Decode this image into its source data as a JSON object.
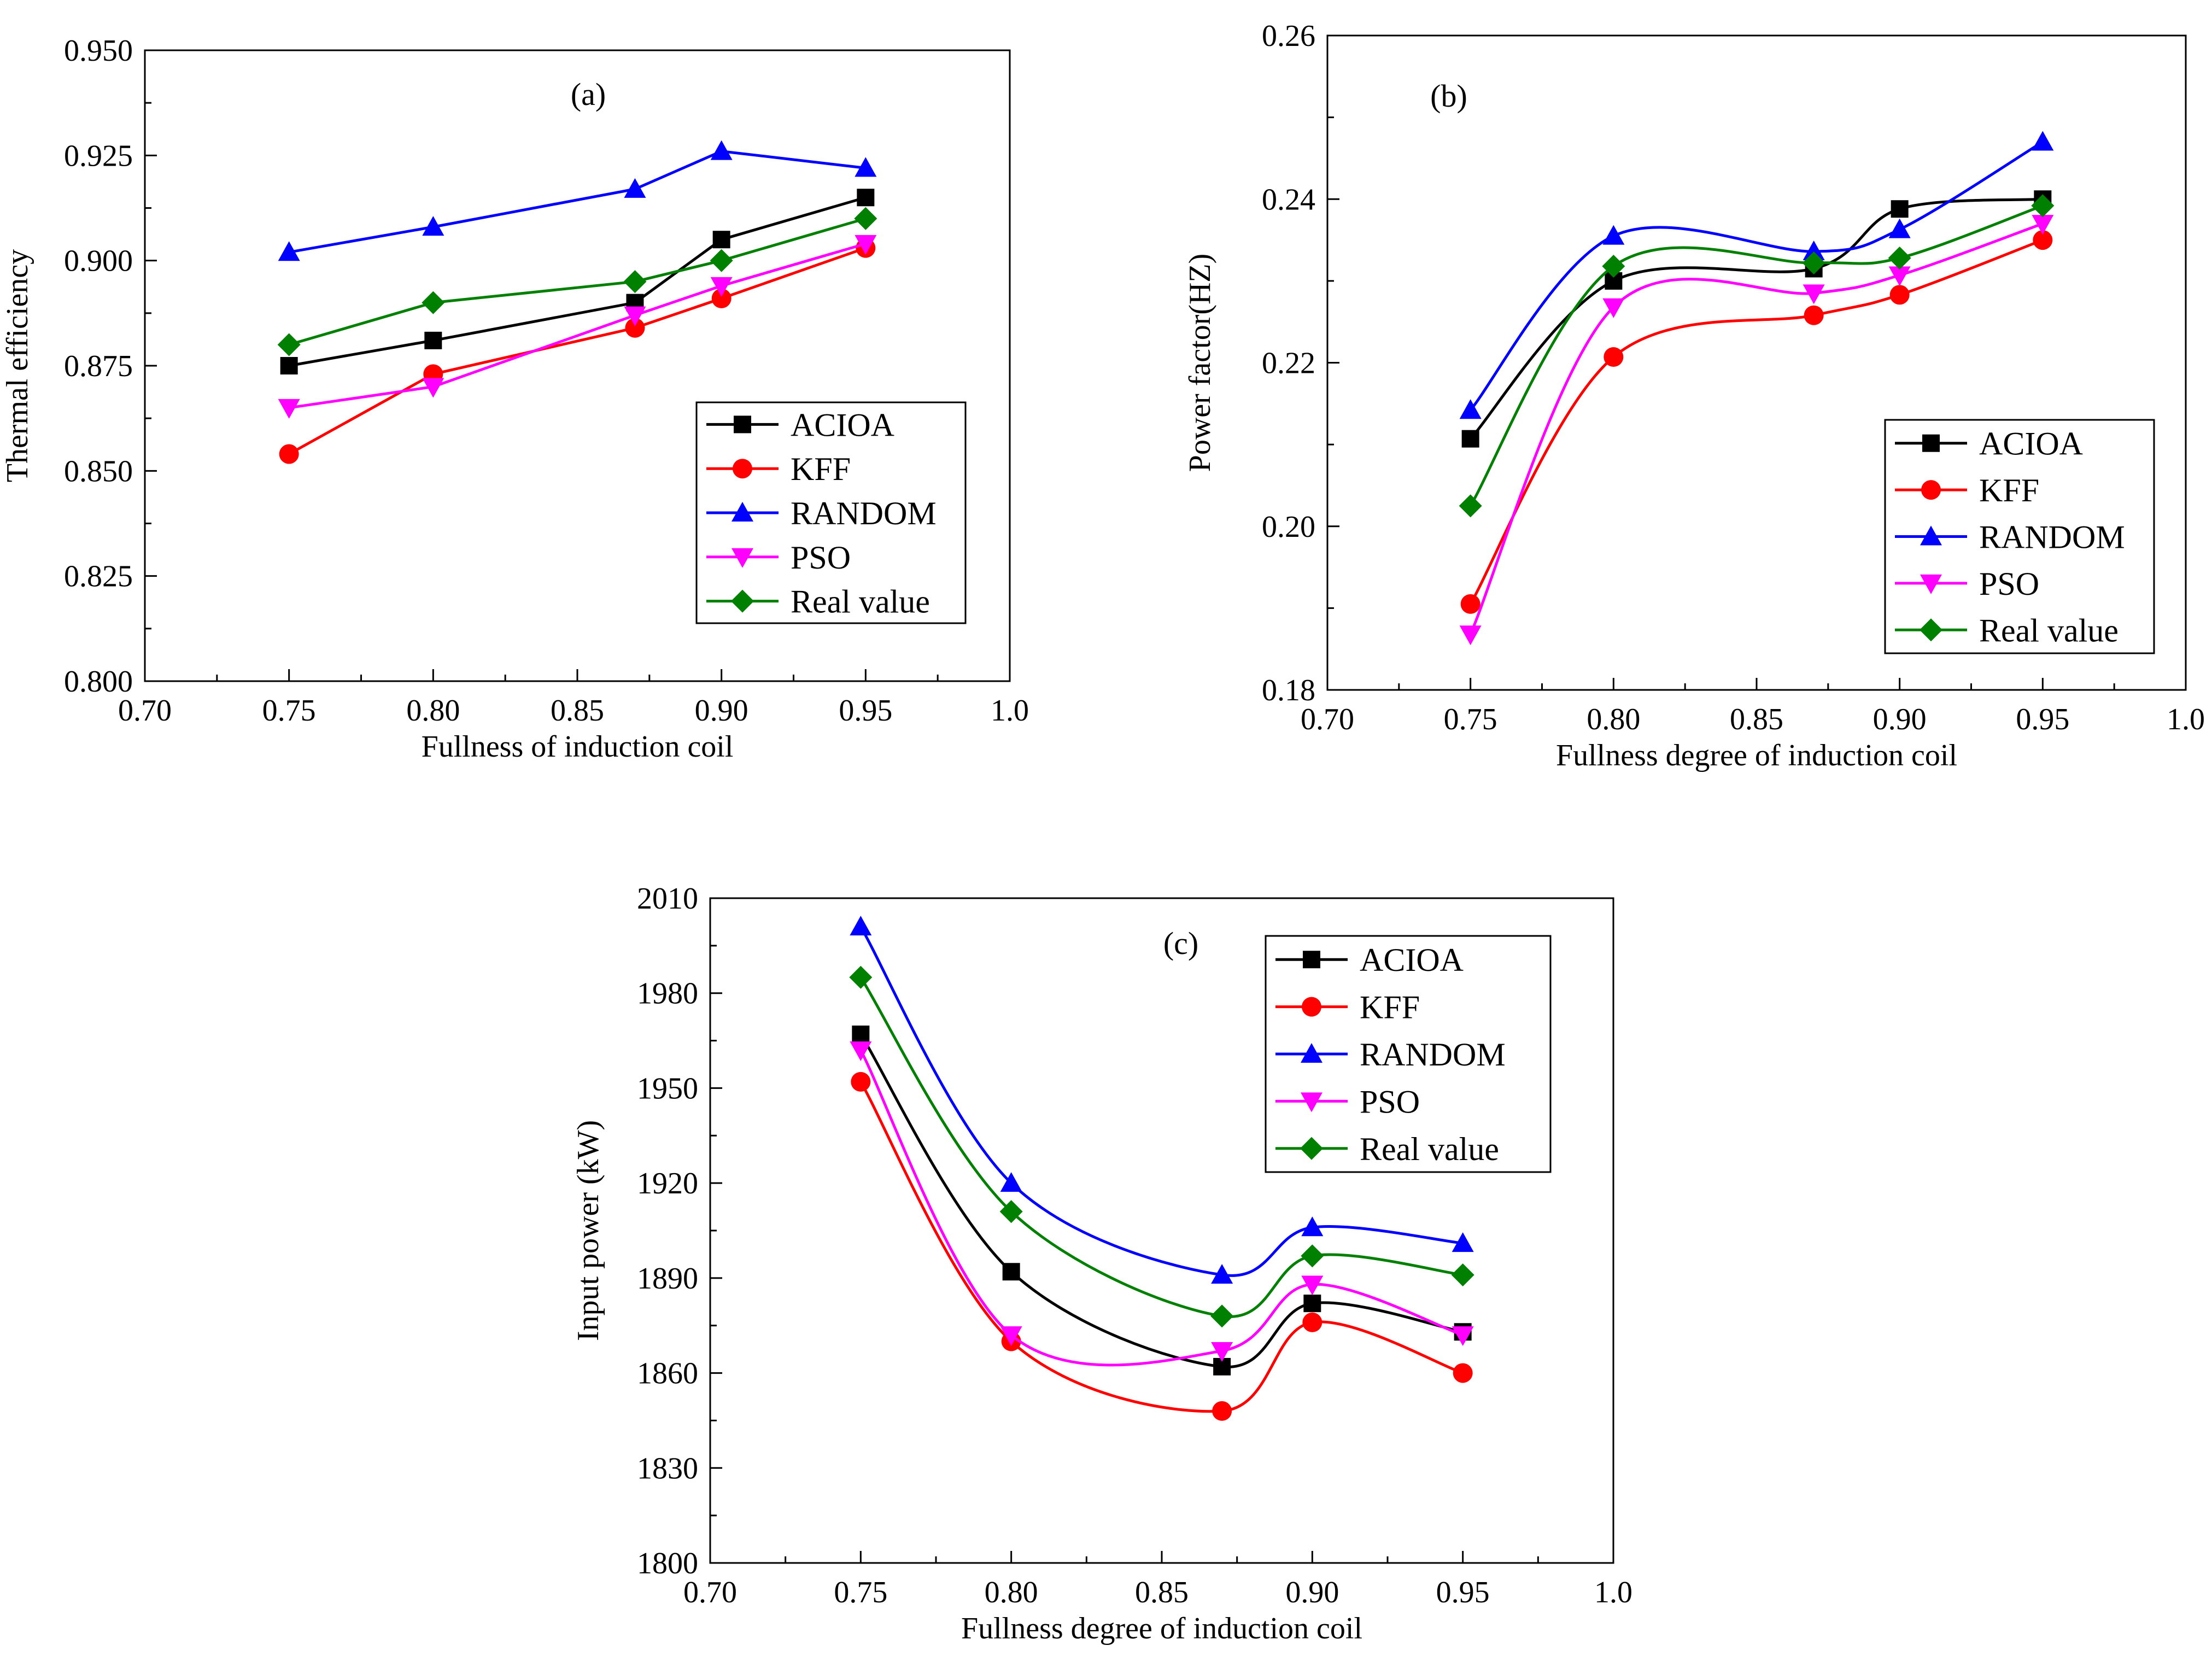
{
  "colors": {
    "ACIOA": "#000000",
    "KFF": "#ff0000",
    "RANDOM": "#0000ff",
    "PSO": "#ff00ff",
    "Real value": "#008000"
  },
  "chart_data": [
    {
      "id": "a",
      "type": "line",
      "panel_label": "(a)",
      "smooth": false,
      "xlabel": "Fullness of induction coil",
      "ylabel": "Thermal efficiency",
      "xlim": [
        0.7,
        1.0
      ],
      "ylim": [
        0.8,
        0.95
      ],
      "xticks": [
        "0.70",
        "0.75",
        "0.80",
        "0.85",
        "0.90",
        "0.95",
        "1.0"
      ],
      "yticks": [
        "0.800",
        "0.825",
        "0.850",
        "0.875",
        "0.900",
        "0.925",
        "0.950"
      ],
      "x": [
        0.75,
        0.8,
        0.87,
        0.9,
        0.95
      ],
      "legend_position": "bottom-right",
      "series": [
        {
          "name": "ACIOA",
          "marker": "square",
          "values": [
            0.875,
            0.881,
            0.89,
            0.905,
            0.915
          ]
        },
        {
          "name": "KFF",
          "marker": "circle",
          "values": [
            0.854,
            0.873,
            0.884,
            0.891,
            0.903
          ]
        },
        {
          "name": "RANDOM",
          "marker": "triangle-up",
          "values": [
            0.902,
            0.908,
            0.917,
            0.926,
            0.922
          ]
        },
        {
          "name": "PSO",
          "marker": "triangle-down",
          "values": [
            0.865,
            0.87,
            0.887,
            0.894,
            0.904
          ]
        },
        {
          "name": "Real value",
          "marker": "diamond",
          "values": [
            0.88,
            0.89,
            0.895,
            0.9,
            0.91
          ]
        }
      ]
    },
    {
      "id": "b",
      "type": "line",
      "panel_label": "(b)",
      "smooth": true,
      "xlabel": "Fullness degree of induction coil",
      "ylabel": "Power factor(HZ)",
      "xlim": [
        0.7,
        1.0
      ],
      "ylim": [
        0.18,
        0.26
      ],
      "xticks": [
        "0.70",
        "0.75",
        "0.80",
        "0.85",
        "0.90",
        "0.95",
        "1.0"
      ],
      "yticks": [
        "0.18",
        "0.20",
        "0.22",
        "0.24",
        "0.26"
      ],
      "x": [
        0.75,
        0.8,
        0.87,
        0.9,
        0.95
      ],
      "legend_position": "bottom-right",
      "series": [
        {
          "name": "ACIOA",
          "marker": "square",
          "values": [
            0.2107,
            0.23,
            0.2315,
            0.2388,
            0.24
          ]
        },
        {
          "name": "KFF",
          "marker": "circle",
          "values": [
            0.1905,
            0.2207,
            0.2258,
            0.2283,
            0.235
          ]
        },
        {
          "name": "RANDOM",
          "marker": "triangle-up",
          "values": [
            0.2142,
            0.2355,
            0.2336,
            0.2363,
            0.247
          ]
        },
        {
          "name": "PSO",
          "marker": "triangle-down",
          "values": [
            0.1868,
            0.2268,
            0.2285,
            0.2307,
            0.237
          ]
        },
        {
          "name": "Real value",
          "marker": "diamond",
          "values": [
            0.2025,
            0.2318,
            0.2322,
            0.2328,
            0.2392
          ]
        }
      ]
    },
    {
      "id": "c",
      "type": "line",
      "panel_label": "(c)",
      "smooth": true,
      "xlabel": "Fullness degree of induction coil",
      "ylabel": "Input power (kW)",
      "xlim": [
        0.7,
        1.0
      ],
      "ylim": [
        1800,
        2010
      ],
      "xticks": [
        "0.70",
        "0.75",
        "0.80",
        "0.85",
        "0.90",
        "0.95",
        "1.0"
      ],
      "yticks": [
        "1800",
        "1830",
        "1860",
        "1890",
        "1920",
        "1950",
        "1980",
        "2010"
      ],
      "x": [
        0.75,
        0.8,
        0.87,
        0.9,
        0.95
      ],
      "legend_position": "top-right",
      "series": [
        {
          "name": "ACIOA",
          "marker": "square",
          "values": [
            1967,
            1892,
            1862,
            1882,
            1873
          ]
        },
        {
          "name": "KFF",
          "marker": "circle",
          "values": [
            1952,
            1870,
            1848,
            1876,
            1860
          ]
        },
        {
          "name": "RANDOM",
          "marker": "triangle-up",
          "values": [
            2001,
            1920,
            1891,
            1906,
            1901
          ]
        },
        {
          "name": "PSO",
          "marker": "triangle-down",
          "values": [
            1962,
            1872,
            1867,
            1888,
            1872
          ]
        },
        {
          "name": "Real value",
          "marker": "diamond",
          "values": [
            1985,
            1911,
            1878,
            1897,
            1891
          ]
        }
      ]
    }
  ]
}
